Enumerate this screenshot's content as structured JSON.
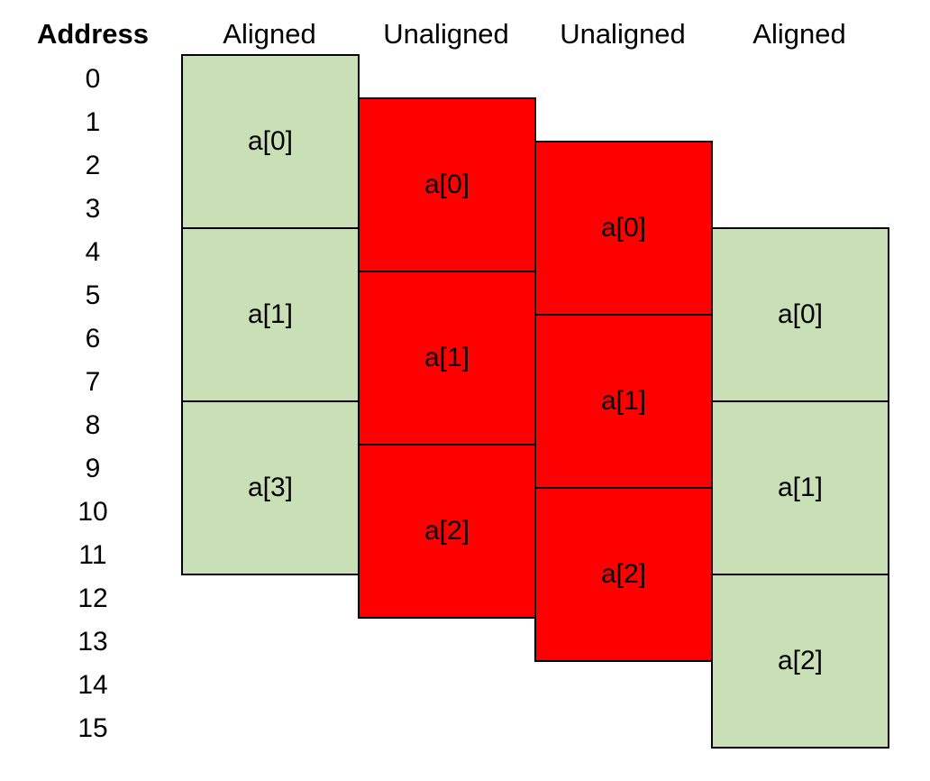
{
  "address_header": "Address",
  "addresses": [
    "0",
    "1",
    "2",
    "3",
    "4",
    "5",
    "6",
    "7",
    "8",
    "9",
    "10",
    "11",
    "12",
    "13",
    "14",
    "15"
  ],
  "columns": [
    {
      "header": "Aligned",
      "status": "aligned",
      "start_address": 0,
      "blocks": [
        "a[0]",
        "a[1]",
        "a[3]"
      ]
    },
    {
      "header": "Unaligned",
      "status": "unaligned",
      "start_address": 1,
      "blocks": [
        "a[0]",
        "a[1]",
        "a[2]"
      ]
    },
    {
      "header": "Unaligned",
      "status": "unaligned",
      "start_address": 2,
      "blocks": [
        "a[0]",
        "a[1]",
        "a[2]"
      ]
    },
    {
      "header": "Aligned",
      "status": "aligned",
      "start_address": 4,
      "blocks": [
        "a[0]",
        "a[1]",
        "a[2]"
      ]
    }
  ],
  "colors": {
    "aligned": "#c9dfb6",
    "unaligned": "#ff0000",
    "border": "#000000"
  }
}
